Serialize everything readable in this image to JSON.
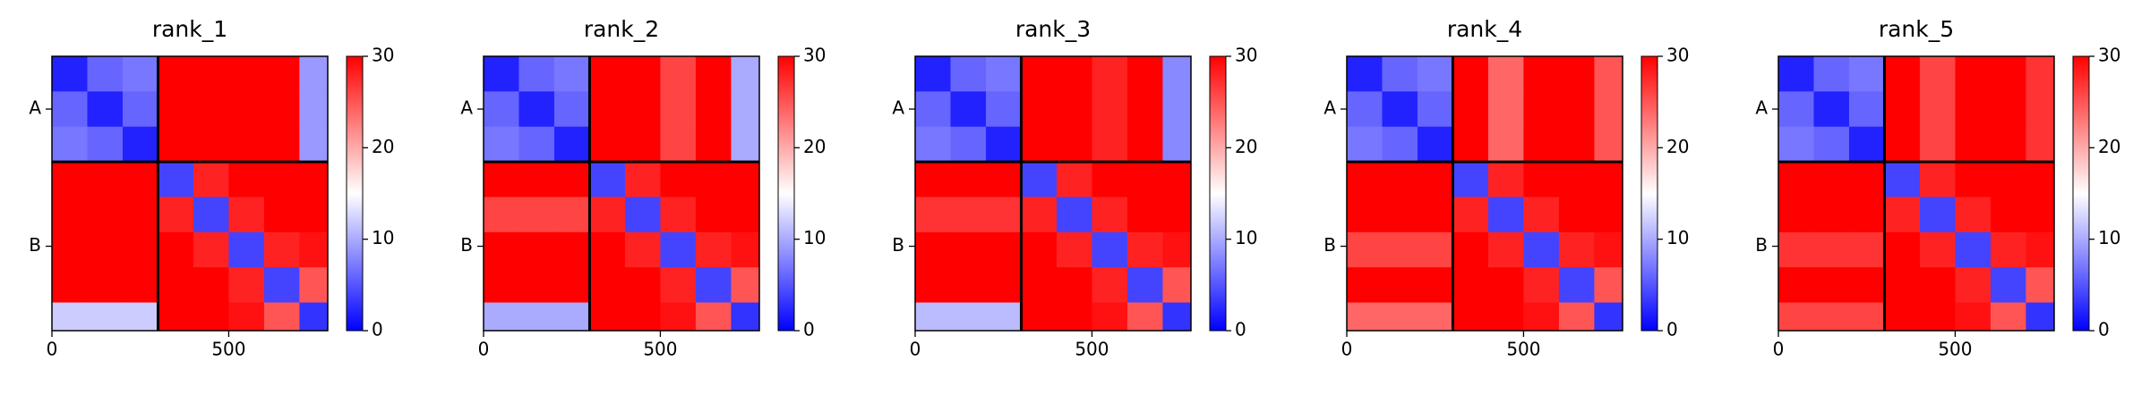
{
  "chart_data": [
    {
      "type": "heatmap",
      "title": "rank_1",
      "colormap": "bwr",
      "clim": [
        0,
        30
      ],
      "cticks": [
        0,
        10,
        20,
        30
      ],
      "xlim": [
        0,
        780
      ],
      "ylim": [
        780,
        0
      ],
      "xticks": [
        0,
        500
      ],
      "yticks": [
        {
          "value": 150,
          "label": "A"
        },
        {
          "value": 540,
          "label": "B"
        }
      ],
      "chain_breaks": [
        300
      ],
      "x_edges": [
        0,
        100,
        200,
        300,
        400,
        500,
        600,
        700,
        780
      ],
      "y_edges": [
        0,
        100,
        200,
        300,
        400,
        500,
        600,
        700,
        780
      ],
      "z": [
        [
          2,
          6,
          7,
          30,
          30,
          30,
          30,
          9
        ],
        [
          6,
          2,
          6,
          30,
          30,
          30,
          30,
          9
        ],
        [
          7,
          6,
          2,
          30,
          30,
          30,
          30,
          9
        ],
        [
          30,
          30,
          30,
          4,
          28,
          30,
          30,
          30
        ],
        [
          30,
          30,
          30,
          28,
          4,
          28,
          30,
          30
        ],
        [
          30,
          30,
          30,
          30,
          28,
          4,
          28,
          29
        ],
        [
          30,
          30,
          30,
          30,
          30,
          28,
          4,
          25
        ],
        [
          12,
          12,
          12,
          30,
          30,
          29,
          25,
          3
        ]
      ]
    },
    {
      "type": "heatmap",
      "title": "rank_2",
      "colormap": "bwr",
      "clim": [
        0,
        30
      ],
      "cticks": [
        0,
        10,
        20,
        30
      ],
      "xlim": [
        0,
        780
      ],
      "ylim": [
        780,
        0
      ],
      "xticks": [
        0,
        500
      ],
      "yticks": [
        {
          "value": 150,
          "label": "A"
        },
        {
          "value": 540,
          "label": "B"
        }
      ],
      "chain_breaks": [
        300
      ],
      "x_edges": [
        0,
        100,
        200,
        300,
        400,
        500,
        600,
        700,
        780
      ],
      "y_edges": [
        0,
        100,
        200,
        300,
        400,
        500,
        600,
        700,
        780
      ],
      "z": [
        [
          2,
          6,
          7,
          30,
          30,
          26,
          30,
          10
        ],
        [
          6,
          2,
          6,
          30,
          30,
          26,
          30,
          10
        ],
        [
          7,
          6,
          2,
          30,
          30,
          26,
          30,
          10
        ],
        [
          30,
          30,
          30,
          4,
          28,
          30,
          30,
          30
        ],
        [
          26,
          26,
          26,
          28,
          4,
          28,
          30,
          30
        ],
        [
          30,
          30,
          30,
          30,
          28,
          4,
          28,
          29
        ],
        [
          30,
          30,
          30,
          30,
          30,
          28,
          4,
          25
        ],
        [
          10,
          10,
          10,
          30,
          30,
          29,
          25,
          3
        ]
      ]
    },
    {
      "type": "heatmap",
      "title": "rank_3",
      "colormap": "bwr",
      "clim": [
        0,
        30
      ],
      "cticks": [
        0,
        10,
        20,
        30
      ],
      "xlim": [
        0,
        780
      ],
      "ylim": [
        780,
        0
      ],
      "xticks": [
        0,
        500
      ],
      "yticks": [
        {
          "value": 150,
          "label": "A"
        },
        {
          "value": 540,
          "label": "B"
        }
      ],
      "chain_breaks": [
        300
      ],
      "x_edges": [
        0,
        100,
        200,
        300,
        400,
        500,
        600,
        700,
        780
      ],
      "y_edges": [
        0,
        100,
        200,
        300,
        400,
        500,
        600,
        700,
        780
      ],
      "z": [
        [
          2,
          6,
          7,
          30,
          30,
          28,
          30,
          8
        ],
        [
          6,
          2,
          6,
          30,
          30,
          28,
          30,
          8
        ],
        [
          7,
          6,
          2,
          30,
          30,
          28,
          30,
          8
        ],
        [
          30,
          30,
          30,
          4,
          28,
          30,
          30,
          30
        ],
        [
          27,
          27,
          27,
          28,
          4,
          28,
          30,
          30
        ],
        [
          30,
          30,
          30,
          30,
          28,
          4,
          28,
          29
        ],
        [
          30,
          30,
          30,
          30,
          30,
          28,
          4,
          25
        ],
        [
          11,
          11,
          11,
          30,
          30,
          29,
          25,
          3
        ]
      ]
    },
    {
      "type": "heatmap",
      "title": "rank_4",
      "colormap": "bwr",
      "clim": [
        0,
        30
      ],
      "cticks": [
        0,
        10,
        20,
        30
      ],
      "xlim": [
        0,
        780
      ],
      "ylim": [
        780,
        0
      ],
      "xticks": [
        0,
        500
      ],
      "yticks": [
        {
          "value": 150,
          "label": "A"
        },
        {
          "value": 540,
          "label": "B"
        }
      ],
      "chain_breaks": [
        300
      ],
      "x_edges": [
        0,
        100,
        200,
        300,
        400,
        500,
        600,
        700,
        780
      ],
      "y_edges": [
        0,
        100,
        200,
        300,
        400,
        500,
        600,
        700,
        780
      ],
      "z": [
        [
          2,
          6,
          7,
          30,
          24,
          30,
          30,
          25
        ],
        [
          6,
          2,
          6,
          30,
          24,
          30,
          30,
          25
        ],
        [
          7,
          6,
          2,
          30,
          24,
          30,
          30,
          25
        ],
        [
          30,
          30,
          30,
          4,
          28,
          30,
          30,
          30
        ],
        [
          30,
          30,
          30,
          28,
          4,
          28,
          30,
          30
        ],
        [
          26,
          26,
          26,
          30,
          28,
          4,
          28,
          29
        ],
        [
          30,
          30,
          30,
          30,
          30,
          28,
          4,
          25
        ],
        [
          24,
          24,
          24,
          30,
          30,
          29,
          25,
          3
        ]
      ]
    },
    {
      "type": "heatmap",
      "title": "rank_5",
      "colormap": "bwr",
      "clim": [
        0,
        30
      ],
      "cticks": [
        0,
        10,
        20,
        30
      ],
      "xlim": [
        0,
        780
      ],
      "ylim": [
        780,
        0
      ],
      "xticks": [
        0,
        500
      ],
      "yticks": [
        {
          "value": 150,
          "label": "A"
        },
        {
          "value": 540,
          "label": "B"
        }
      ],
      "chain_breaks": [
        300
      ],
      "x_edges": [
        0,
        100,
        200,
        300,
        400,
        500,
        600,
        700,
        780
      ],
      "y_edges": [
        0,
        100,
        200,
        300,
        400,
        500,
        600,
        700,
        780
      ],
      "z": [
        [
          2,
          6,
          7,
          30,
          26,
          30,
          30,
          27
        ],
        [
          6,
          2,
          6,
          30,
          26,
          30,
          30,
          27
        ],
        [
          7,
          6,
          2,
          30,
          26,
          30,
          30,
          27
        ],
        [
          30,
          30,
          30,
          4,
          28,
          30,
          30,
          30
        ],
        [
          30,
          30,
          30,
          28,
          4,
          28,
          30,
          30
        ],
        [
          27,
          27,
          27,
          30,
          28,
          4,
          28,
          29
        ],
        [
          30,
          30,
          30,
          30,
          30,
          28,
          4,
          25
        ],
        [
          26,
          26,
          26,
          30,
          30,
          29,
          25,
          3
        ]
      ]
    }
  ]
}
